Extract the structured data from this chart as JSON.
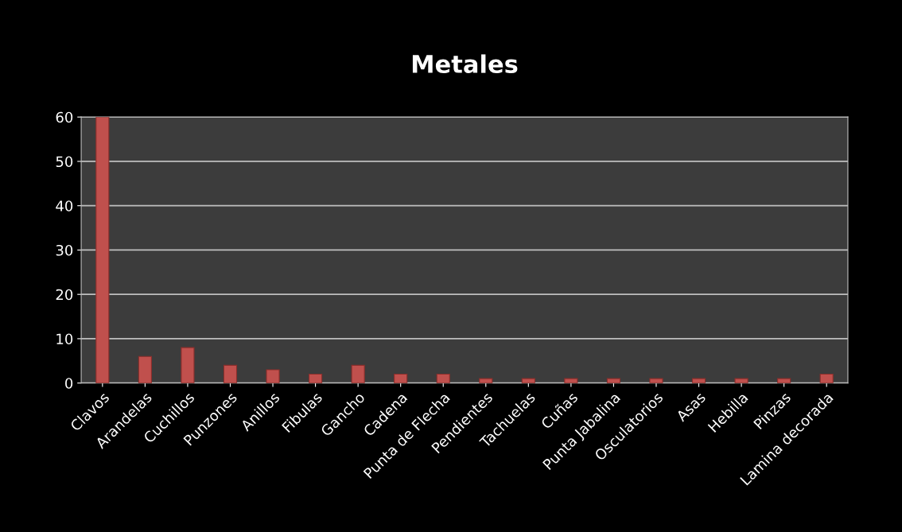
{
  "chart_data": {
    "type": "bar",
    "title": "Metales",
    "categories": [
      "Clavos",
      "Arandelas",
      "Cuchillos",
      "Punzones",
      "Anillos",
      "Fibulas",
      "Gancho",
      "Cadena",
      "Punta de Flecha",
      "Pendientes",
      "Tachuelas",
      "Cuñas",
      "Punta Jabalina",
      "Osculatorios",
      "Asas",
      "Hebilla",
      "Pinzas",
      "Lamina decorada"
    ],
    "values": [
      60,
      6,
      8,
      4,
      3,
      2,
      4,
      2,
      2,
      1,
      1,
      1,
      1,
      1,
      1,
      1,
      1,
      2
    ],
    "color": "#c0504d",
    "ylim": [
      0,
      60
    ],
    "yticks": [
      0,
      10,
      20,
      30,
      40,
      50,
      60
    ],
    "grid": "y",
    "legend": false
  }
}
